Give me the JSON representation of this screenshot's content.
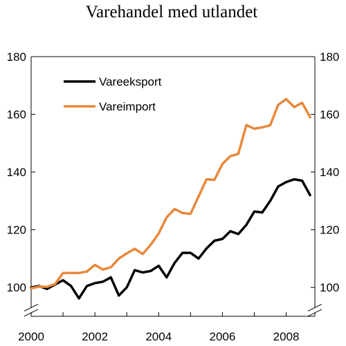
{
  "chart_data": {
    "type": "line",
    "title": "Varehandel med utlandet",
    "xlabel": "",
    "ylabel": "",
    "xlim": [
      2000,
      2008.9
    ],
    "ylim": [
      90,
      180
    ],
    "y_ticks": [
      100,
      120,
      140,
      160,
      180
    ],
    "x_ticks": [
      2000,
      2002,
      2004,
      2006,
      2008
    ],
    "axis_break": "bottom of both y-axes",
    "legend_position": "top-left",
    "grid": false,
    "series": [
      {
        "name": "Vareeksport",
        "color": "#000000",
        "x": [
          2000,
          2000.25,
          2000.5,
          2000.75,
          2001,
          2001.25,
          2001.5,
          2001.75,
          2002,
          2002.25,
          2002.5,
          2002.75,
          2003,
          2003.25,
          2003.5,
          2003.75,
          2004,
          2004.25,
          2004.5,
          2004.75,
          2005,
          2005.25,
          2005.5,
          2005.75,
          2006,
          2006.25,
          2006.5,
          2006.75,
          2007,
          2007.25,
          2007.5,
          2007.75,
          2008,
          2008.25,
          2008.5,
          2008.75
        ],
        "values": [
          100,
          100.5,
          99.5,
          101,
          102.5,
          100.5,
          96.2,
          100.5,
          101.5,
          102,
          103.5,
          97.2,
          100,
          106,
          105.2,
          105.7,
          107.5,
          103.5,
          108.5,
          112,
          112,
          110,
          113.5,
          116.2,
          116.8,
          119.5,
          118.5,
          121.7,
          126.3,
          126,
          130,
          135,
          136.5,
          137.5,
          137,
          132
        ]
      },
      {
        "name": "Vareimport",
        "color": "#e8883a",
        "x": [
          2000,
          2000.25,
          2000.5,
          2000.75,
          2001,
          2001.25,
          2001.5,
          2001.75,
          2002,
          2002.25,
          2002.5,
          2002.75,
          2003,
          2003.25,
          2003.5,
          2003.75,
          2004,
          2004.25,
          2004.5,
          2004.75,
          2005,
          2005.25,
          2005.5,
          2005.75,
          2006,
          2006.25,
          2006.5,
          2006.75,
          2007,
          2007.25,
          2007.5,
          2007.75,
          2008,
          2008.25,
          2008.5,
          2008.75
        ],
        "values": [
          99.7,
          100.3,
          100.2,
          101.2,
          105,
          105,
          105,
          105.5,
          107.8,
          106.2,
          107,
          110,
          111.8,
          113.4,
          111.6,
          114.8,
          118.7,
          124.3,
          127.2,
          125.8,
          125.5,
          131.5,
          137.5,
          137.3,
          142.8,
          145.5,
          146.3,
          156.3,
          155,
          155.5,
          156.2,
          163.3,
          165.3,
          162.5,
          164,
          159
        ]
      }
    ]
  }
}
